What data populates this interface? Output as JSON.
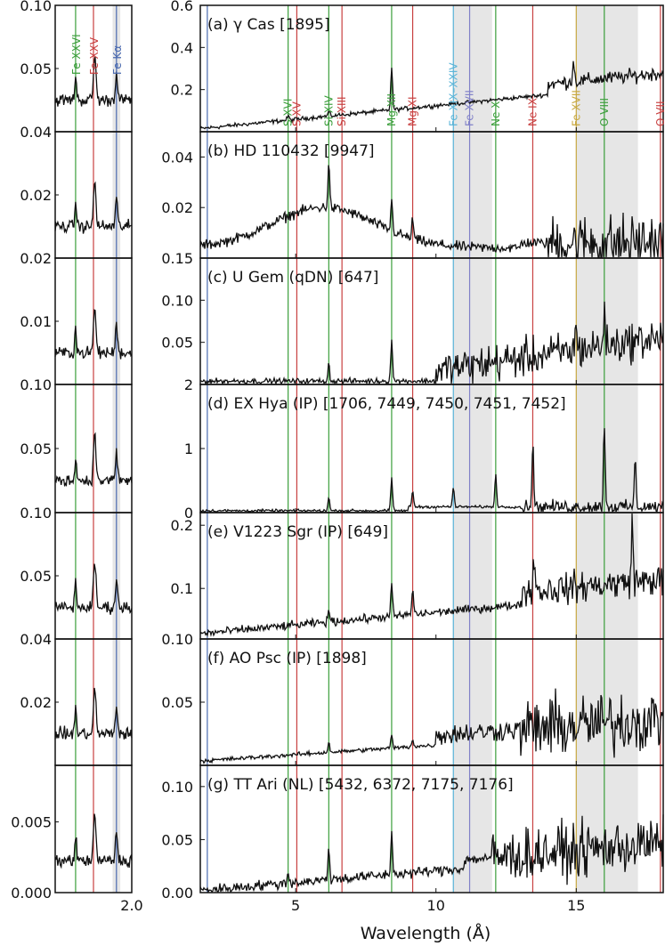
{
  "chart_data": {
    "type": "line",
    "xlabel": "Wavelength (Å)",
    "main_x_ticks": [
      5,
      10,
      15
    ],
    "main_xlim": [
      1.6,
      18.1
    ],
    "inset_xlim": [
      1.7,
      2.0
    ],
    "inset_x_ticks": [
      2.0
    ],
    "inset_x_tick_labels": [
      "2.0"
    ],
    "shaded_bands": [
      [
        10.6,
        12.0
      ],
      [
        15.0,
        17.2
      ]
    ],
    "inset_shaded_band": [
      1.925,
      1.955
    ],
    "colors": {
      "fe": "#3b9e3b",
      "mg": "#c84040",
      "ne": "#5ab4d8",
      "ox": "#c8a840",
      "fek": "#4a6ab0",
      "line": "#111111",
      "shade": "#e6e6e6"
    },
    "inset_lines": [
      {
        "label": "Fe XXVI",
        "x": 1.78,
        "color": "#3b9e3b"
      },
      {
        "label": "Fe XXV",
        "x": 1.85,
        "color": "#c84040"
      },
      {
        "label": "Fe Kα",
        "x": 1.94,
        "color": "#4a6ab0"
      }
    ],
    "main_lines": [
      {
        "label": "S XVI",
        "x": 4.73,
        "color": "#3b9e3b"
      },
      {
        "label": "S XV",
        "x": 5.04,
        "color": "#c84040"
      },
      {
        "label": "Si XIV",
        "x": 6.18,
        "color": "#3b9e3b"
      },
      {
        "label": "Si XIII",
        "x": 6.65,
        "color": "#c84040"
      },
      {
        "label": "Mg XII",
        "x": 8.42,
        "color": "#3b9e3b"
      },
      {
        "label": "Mg XI",
        "x": 9.17,
        "color": "#c84040"
      },
      {
        "label": "Fe XIX–XXIV",
        "x": 10.62,
        "color": "#5ab4d8"
      },
      {
        "label": "Fe XVII",
        "x": 11.2,
        "color": "#8080c8"
      },
      {
        "label": "Ne X",
        "x": 12.13,
        "color": "#3b9e3b"
      },
      {
        "label": "Ne IX",
        "x": 13.45,
        "color": "#c84040"
      },
      {
        "label": "Fe XVII",
        "x": 15.0,
        "color": "#c8a840"
      },
      {
        "label": "O VIII",
        "x": 16.0,
        "color": "#3b9e3b"
      },
      {
        "label": "O VII",
        "x": 18.0,
        "color": "#c84040"
      }
    ],
    "panels": [
      {
        "id": "a",
        "title": "(a) γ Cas [1895]",
        "ylim": [
          0,
          0.6
        ],
        "yticks": [
          "0.2",
          "0.4",
          "0.6"
        ],
        "yvals": [
          0.2,
          0.4,
          0.6
        ],
        "inset_ylim": [
          0,
          0.1
        ],
        "inset_yticks": [
          "0.05",
          "0.10"
        ],
        "inset_yvals": [
          0.05,
          0.1
        ]
      },
      {
        "id": "b",
        "title": "(b) HD 110432 [9947]",
        "ylim": [
          0,
          0.05
        ],
        "yticks": [
          "0.02",
          "0.04"
        ],
        "yvals": [
          0.02,
          0.04
        ],
        "inset_ylim": [
          0,
          0.04
        ],
        "inset_yticks": [
          "0.02",
          "0.04"
        ],
        "inset_yvals": [
          0.02,
          0.04
        ]
      },
      {
        "id": "c",
        "title": "(c) U Gem (qDN) [647]",
        "ylim": [
          0,
          0.15
        ],
        "yticks": [
          "0.05",
          "0.10",
          "0.15"
        ],
        "yvals": [
          0.05,
          0.1,
          0.15
        ],
        "inset_ylim": [
          0,
          0.02
        ],
        "inset_yticks": [
          "0.01",
          "0.02"
        ],
        "inset_yvals": [
          0.01,
          0.02
        ]
      },
      {
        "id": "d",
        "title": "(d) EX Hya (IP) [1706, 7449, 7450, 7451, 7452]",
        "ylim": [
          0,
          2
        ],
        "yticks": [
          "0",
          "1",
          "2"
        ],
        "yvals": [
          0,
          1,
          2
        ],
        "inset_ylim": [
          0,
          0.1
        ],
        "inset_yticks": [
          "0.05",
          "0.10"
        ],
        "inset_yvals": [
          0.05,
          0.1
        ]
      },
      {
        "id": "e",
        "title": "(e) V1223 Sgr (IP) [649]",
        "ylim": [
          0.02,
          0.22
        ],
        "yticks": [
          "0.1",
          "0.2"
        ],
        "yvals": [
          0.1,
          0.2
        ],
        "inset_ylim": [
          0,
          0.1
        ],
        "inset_yticks": [
          "0.05",
          "0.10"
        ],
        "inset_yvals": [
          0.05,
          0.1
        ]
      },
      {
        "id": "f",
        "title": "(f) AO Psc (IP) [1898]",
        "ylim": [
          0,
          0.1
        ],
        "yticks": [
          "0.05",
          "0.10"
        ],
        "yvals": [
          0.05,
          0.1
        ],
        "inset_ylim": [
          0,
          0.04
        ],
        "inset_yticks": [
          "0.02",
          "0.04"
        ],
        "inset_yvals": [
          0.02,
          0.04
        ]
      },
      {
        "id": "g",
        "title": "(g) TT Ari (NL) [5432, 6372, 7175, 7176]",
        "ylim": [
          0,
          0.12
        ],
        "yticks": [
          "0.00",
          "0.05",
          "0.10"
        ],
        "yvals": [
          0,
          0.05,
          0.1
        ],
        "inset_ylim": [
          0,
          0.009
        ],
        "inset_yticks": [
          "0.000",
          "0.005"
        ],
        "inset_yvals": [
          0,
          0.005
        ]
      }
    ]
  }
}
